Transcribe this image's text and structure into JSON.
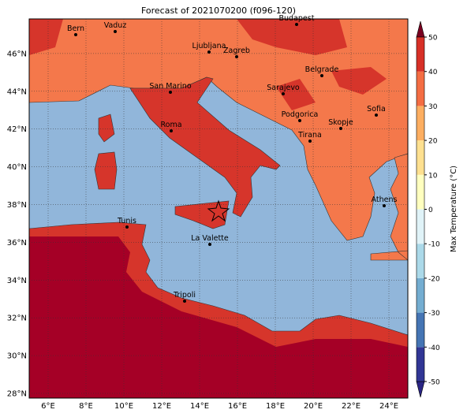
{
  "title": "Forecast of 2021070200 (f096-120)",
  "lon_ticks": [
    "6°E",
    "8°E",
    "10°E",
    "12°E",
    "14°E",
    "16°E",
    "18°E",
    "20°E",
    "22°E",
    "24°E"
  ],
  "lat_ticks": [
    "28°N",
    "30°N",
    "32°N",
    "34°N",
    "36°N",
    "38°N",
    "40°N",
    "42°N",
    "44°N",
    "46°N"
  ],
  "cities": [
    "Bern",
    "Vaduz",
    "Budapest",
    "Ljubljana",
    "Zagreb",
    "Belgrade",
    "San Marino",
    "Sarajevo",
    "Sofia",
    "Podgorica",
    "Skopje",
    "Roma",
    "Tirana",
    "Athens",
    "Tunis",
    "La Valette",
    "Tripoli"
  ],
  "colorbar": {
    "label": "Max Temperature (°C)",
    "ticks": [
      -50,
      -40,
      -30,
      -20,
      -10,
      0,
      10,
      20,
      30,
      40,
      50
    ],
    "colors": [
      "#2a2585",
      "#313695",
      "#4575b4",
      "#74add1",
      "#abd9e9",
      "#e0f3f8",
      "#ffffbf",
      "#fee090",
      "#fdae61",
      "#f46d43",
      "#d73027",
      "#a50026",
      "#7a0020"
    ]
  }
}
